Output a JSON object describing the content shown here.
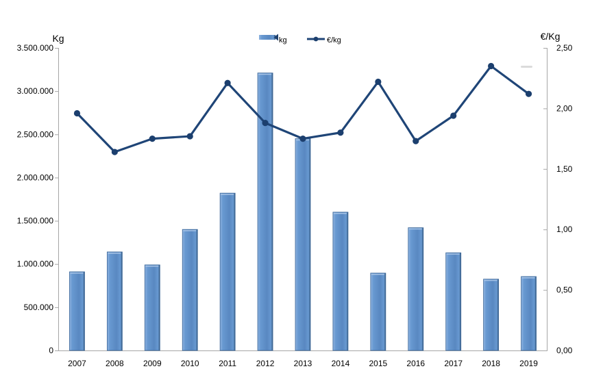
{
  "chart_data": {
    "type": "combo",
    "title": "",
    "categories": [
      "2007",
      "2008",
      "2009",
      "2010",
      "2011",
      "2012",
      "2013",
      "2014",
      "2015",
      "2016",
      "2017",
      "2018",
      "2019"
    ],
    "series": [
      {
        "name": "kg",
        "type": "bar",
        "axis": "left",
        "values": [
          910000,
          1140000,
          990000,
          1400000,
          1820000,
          3210000,
          2450000,
          1600000,
          895000,
          1420000,
          1130000,
          825000,
          855000
        ]
      },
      {
        "name": "€/kg",
        "type": "line",
        "axis": "right",
        "values": [
          1.96,
          1.64,
          1.75,
          1.77,
          2.21,
          1.88,
          1.75,
          1.8,
          2.22,
          1.73,
          1.94,
          2.35,
          2.12
        ]
      }
    ],
    "left_axis": {
      "title": "Kg",
      "min": 0,
      "max": 3500000,
      "tick_step": 500000,
      "tick_labels": [
        "3.500.000",
        "3.000.000",
        "2.500.000",
        "2.000.000",
        "1.500.000",
        "1.000.000",
        "500.000",
        "0"
      ]
    },
    "right_axis": {
      "title": "€/Kg",
      "min": 0,
      "max": 2.5,
      "tick_step": 0.5,
      "tick_labels": [
        "2,50",
        "2,00",
        "1,50",
        "1,00",
        "0,50",
        "0,00"
      ]
    },
    "x_axis": {
      "tick_labels": [
        "2007",
        "2008",
        "2009",
        "2010",
        "2011",
        "2012",
        "2013",
        "2014",
        "2015",
        "2016",
        "2017",
        "2018",
        "2019"
      ]
    },
    "legend_position": "top-center",
    "gridlines": false
  },
  "colors": {
    "bar_fill_light": "#8FB3E0",
    "bar_fill_mid": "#6899D1",
    "bar_fill_deep": "#5988C1",
    "bar_fill_dark": "#35597F",
    "bar_border": "#3A6596",
    "bar_top_highlight": "#AEC9E9",
    "line": "#1F4577",
    "marker": "#1C3F6E",
    "axis": "#A6A6A6",
    "text": "#000000",
    "artifact": "#DBDBDB"
  }
}
